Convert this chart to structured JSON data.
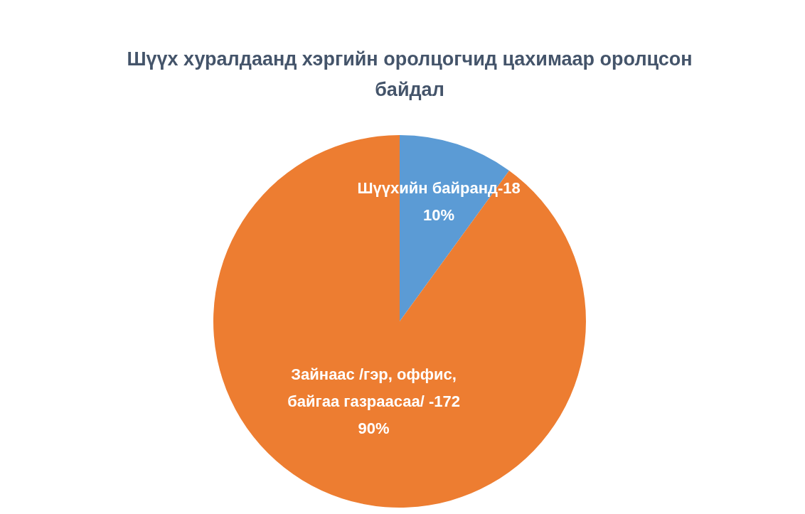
{
  "chart_data": {
    "type": "pie",
    "title": "Шүүх хуралдаанд хэргийн оролцогчид цахимаар оролцсон байдал",
    "categories": [
      "Шүүхийн байранд-18",
      "Зайнаас /гэр, оффис, байгаа газраасаа/ -172"
    ],
    "values": [
      10,
      90
    ],
    "colors": [
      "#5b9bd5",
      "#ed7d31"
    ],
    "value_labels": [
      "10%",
      "90%"
    ]
  }
}
